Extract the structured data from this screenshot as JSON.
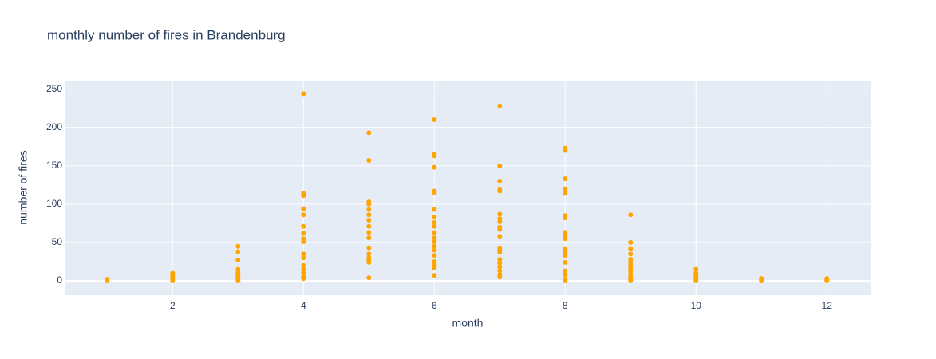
{
  "chart_data": {
    "type": "scatter",
    "title": "monthly number of fires in Brandenburg",
    "x_label": "month",
    "y_label": "number of fires",
    "xlim": [
      0.35,
      12.68
    ],
    "ylim": [
      -18.7,
      261
    ],
    "xticks": [
      2,
      4,
      6,
      8,
      10,
      12
    ],
    "yticks": [
      0,
      50,
      100,
      150,
      200,
      250
    ],
    "grid": true,
    "series": [
      {
        "name": "fires",
        "color": "#ffa500",
        "x": [
          1,
          1,
          1,
          2,
          2,
          2,
          2,
          2,
          3,
          3,
          3,
          3,
          3,
          3,
          3,
          3,
          3,
          4,
          4,
          4,
          4,
          4,
          4,
          4,
          4,
          4,
          4,
          4,
          4,
          4,
          4,
          4,
          4,
          5,
          5,
          5,
          5,
          5,
          5,
          5,
          5,
          5,
          5,
          5,
          5,
          5,
          5,
          5,
          5,
          6,
          6,
          6,
          6,
          6,
          6,
          6,
          6,
          6,
          6,
          6,
          6,
          6,
          6,
          6,
          6,
          6,
          6,
          6,
          6,
          7,
          7,
          7,
          7,
          7,
          7,
          7,
          7,
          7,
          7,
          7,
          7,
          7,
          7,
          7,
          7,
          7,
          7,
          7,
          7,
          8,
          8,
          8,
          8,
          8,
          8,
          8,
          8,
          8,
          8,
          8,
          8,
          8,
          8,
          8,
          8,
          8,
          8,
          9,
          9,
          9,
          9,
          9,
          9,
          9,
          9,
          9,
          9,
          9,
          9,
          9,
          10,
          10,
          10,
          10,
          10,
          10,
          11,
          11,
          11,
          12,
          12,
          12
        ],
        "values": [
          0,
          1,
          2,
          0,
          2,
          4,
          7,
          10,
          0,
          2,
          5,
          8,
          11,
          15,
          27,
          38,
          45,
          244,
          114,
          111,
          94,
          86,
          71,
          62,
          55,
          51,
          35,
          30,
          20,
          15,
          10,
          5,
          3,
          193,
          157,
          103,
          100,
          93,
          86,
          79,
          71,
          63,
          56,
          43,
          35,
          30,
          27,
          24,
          4,
          210,
          165,
          163,
          148,
          117,
          115,
          93,
          83,
          76,
          71,
          63,
          56,
          51,
          45,
          40,
          33,
          25,
          21,
          17,
          7,
          228,
          150,
          130,
          119,
          117,
          87,
          81,
          77,
          70,
          67,
          58,
          43,
          40,
          37,
          28,
          23,
          18,
          13,
          8,
          5,
          173,
          170,
          133,
          120,
          114,
          85,
          82,
          63,
          60,
          55,
          42,
          37,
          33,
          24,
          13,
          8,
          2,
          0,
          86,
          50,
          42,
          35,
          28,
          24,
          20,
          16,
          12,
          8,
          5,
          2,
          0,
          15,
          10,
          6,
          3,
          1,
          0,
          3,
          1,
          0,
          3,
          1,
          0
        ]
      }
    ]
  }
}
